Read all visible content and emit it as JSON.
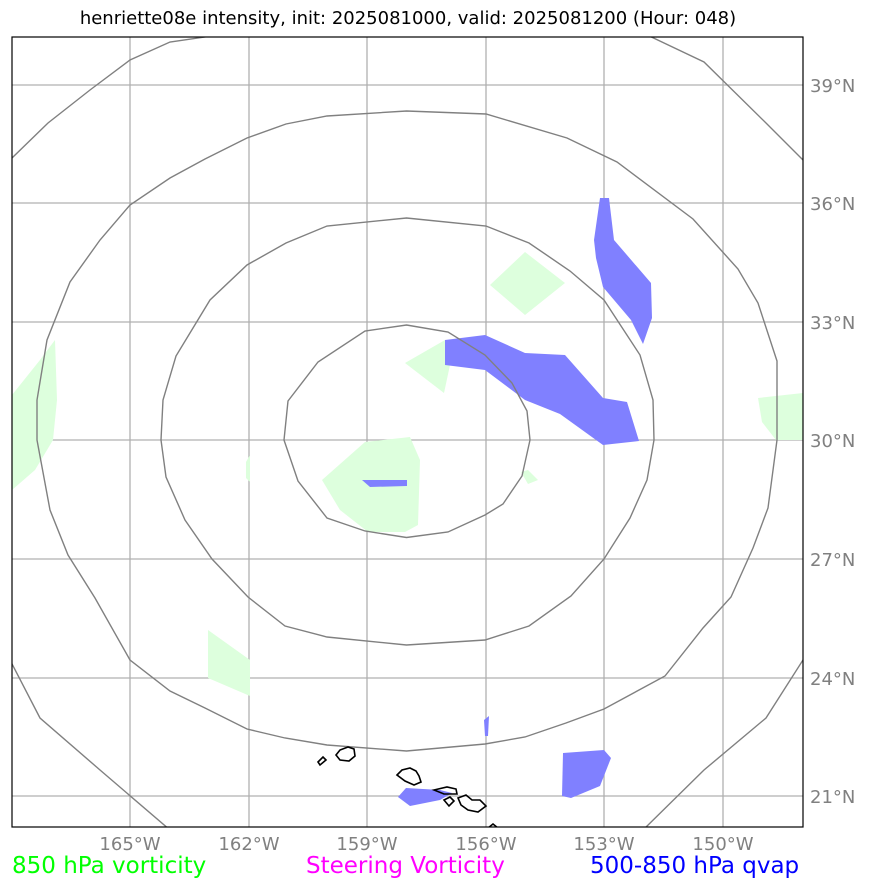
{
  "title": "henriette08e intensity, init: 2025081000, valid: 2025081200 (Hour: 048)",
  "lat_labels": [
    "39°N",
    "36°N",
    "33°N",
    "30°N",
    "27°N",
    "24°N",
    "21°N"
  ],
  "lon_labels": [
    "165°W",
    "162°W",
    "159°W",
    "156°W",
    "153°W",
    "150°W"
  ],
  "legend": {
    "vort850": "850 hPa vorticity",
    "steering": "Steering Vorticity",
    "qvap": "500-850 hPa qvap"
  },
  "colors": {
    "vort850": "#00ff00",
    "steering": "#ff00ff",
    "qvap": "#0000ff",
    "vort_fill": "#ddffdd",
    "qvap_fill": "#8080ff",
    "grid": "#b0b0b0",
    "rings": "#808080"
  }
}
